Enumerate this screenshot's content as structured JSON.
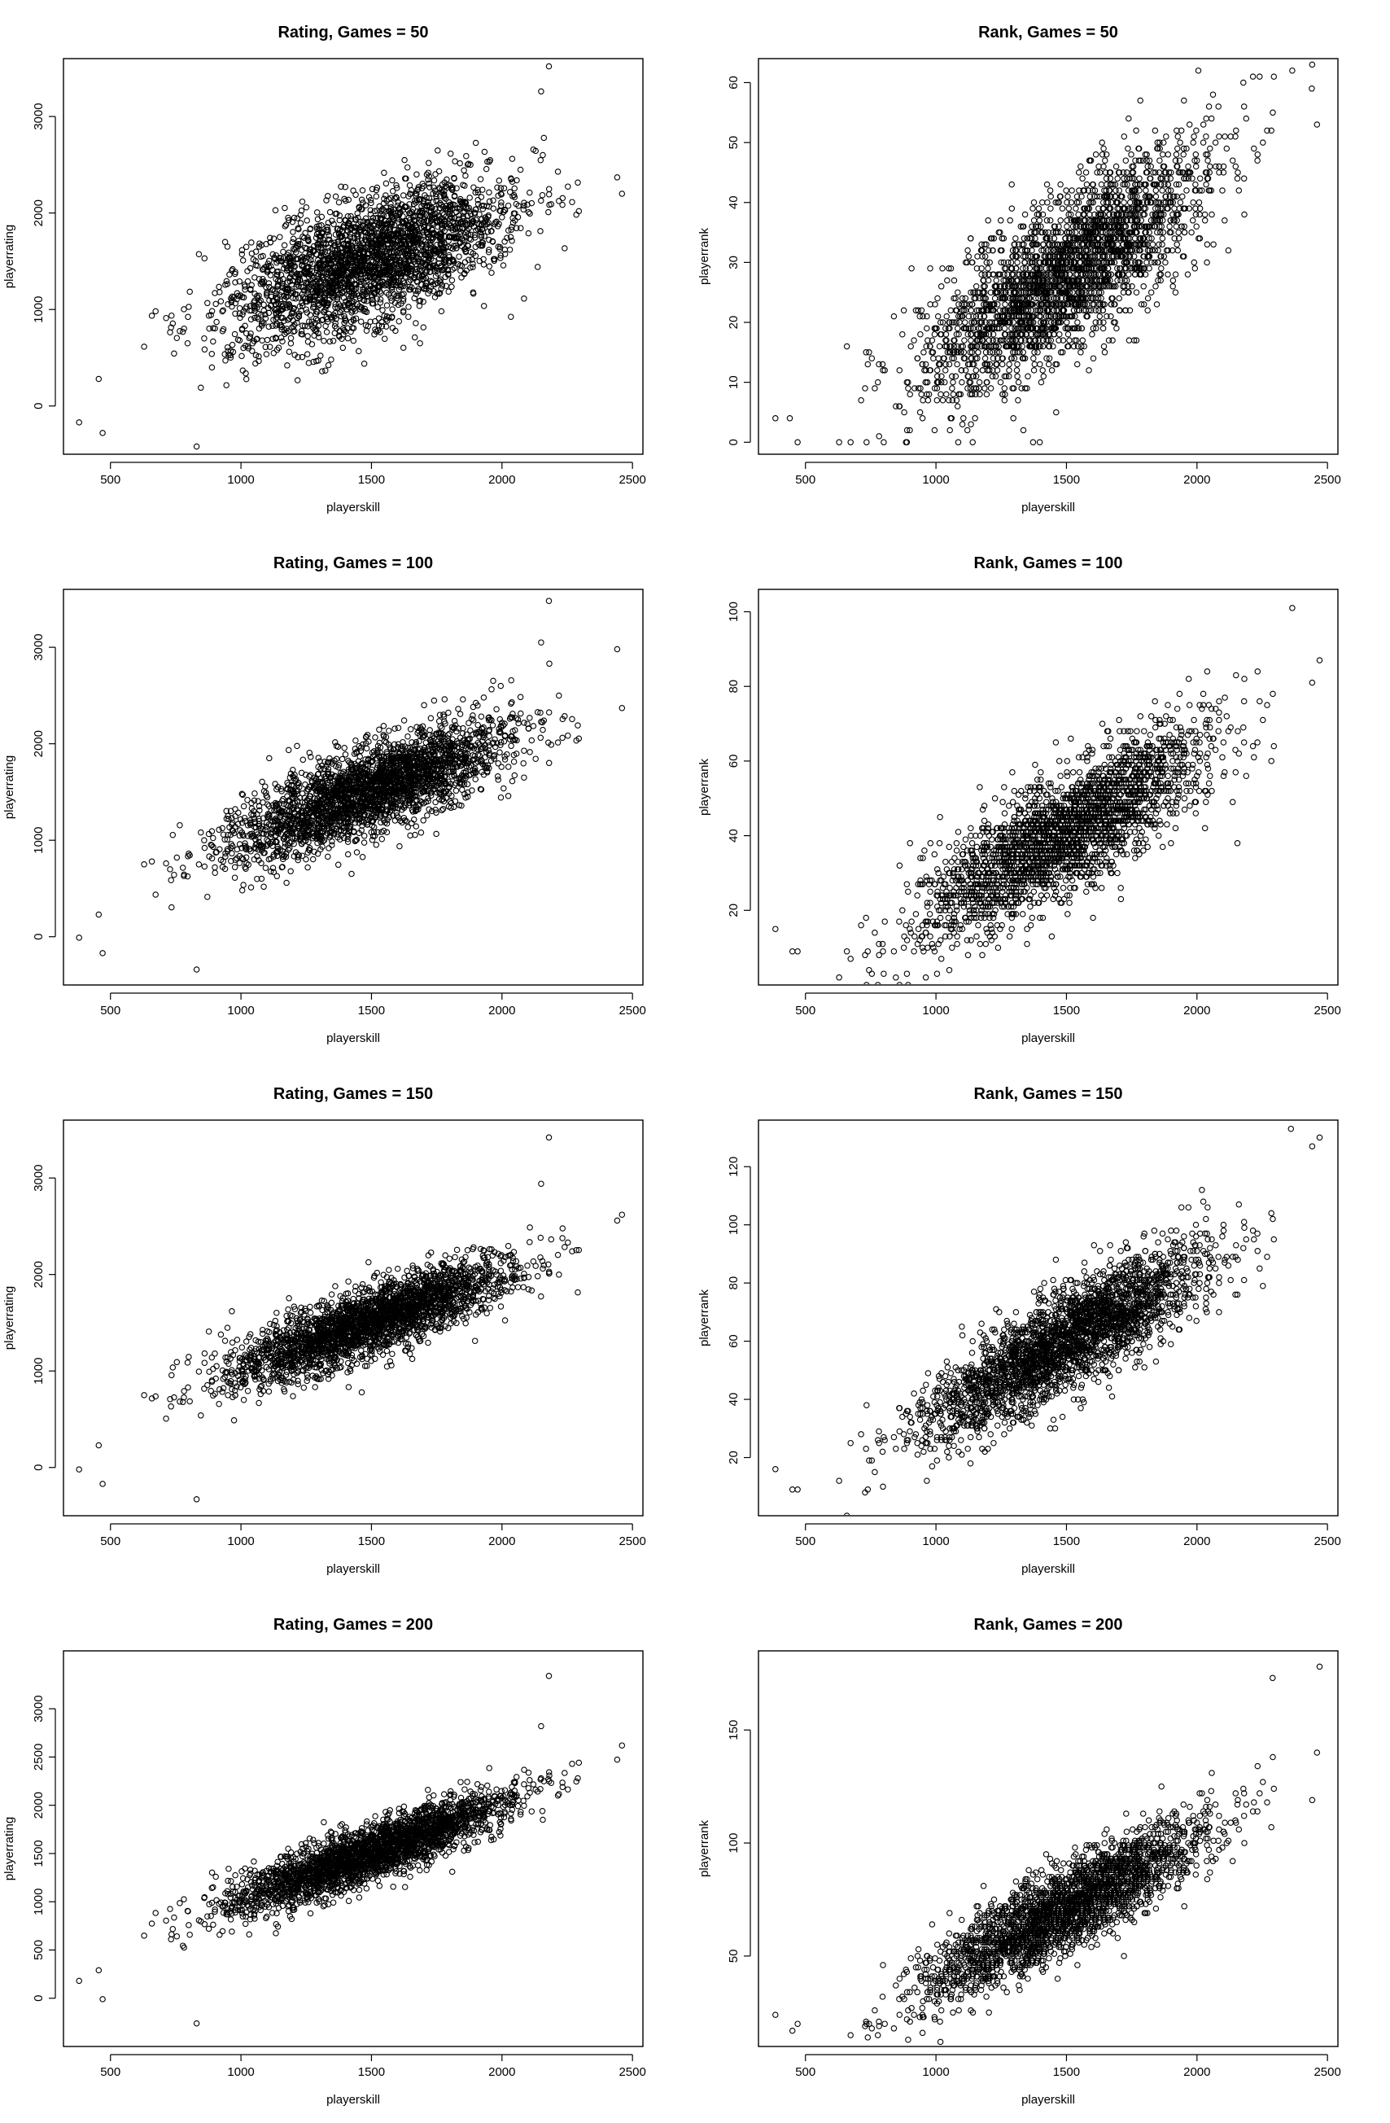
{
  "chart_data": [
    {
      "id": "rating-50",
      "type": "scatter",
      "title": "Rating, Games = 50",
      "xlabel": "playerskill",
      "ylabel": "playerrating",
      "xlim": [
        320,
        2540
      ],
      "ylim": [
        -500,
        3600
      ],
      "xticks": [
        500,
        1000,
        1500,
        2000,
        2500
      ],
      "yticks": [
        0,
        1000,
        2000,
        3000
      ],
      "grid": false,
      "trend": {
        "slope": 0.95,
        "intercept": 100,
        "noise_sd": 330
      },
      "outliers": [
        {
          "x": 380,
          "y": -170
        },
        {
          "x": 455,
          "y": 280
        },
        {
          "x": 470,
          "y": -280
        },
        {
          "x": 830,
          "y": -420
        },
        {
          "x": 2180,
          "y": 3520
        },
        {
          "x": 2150,
          "y": 3260
        },
        {
          "x": 2460,
          "y": 2200
        }
      ]
    },
    {
      "id": "rank-50",
      "type": "scatter",
      "title": "Rank, Games = 50",
      "xlabel": "playerskill",
      "ylabel": "playerrank",
      "xlim": [
        320,
        2540
      ],
      "ylim": [
        -2,
        64
      ],
      "xticks": [
        500,
        1000,
        1500,
        2000,
        2500
      ],
      "yticks": [
        0,
        10,
        20,
        30,
        40,
        50,
        60
      ],
      "grid": false,
      "trend": {
        "slope": 0.0285,
        "intercept": -14.5,
        "noise_sd": 6.5,
        "integer_y": true
      },
      "outliers": [
        {
          "x": 385,
          "y": 4
        },
        {
          "x": 440,
          "y": 4
        },
        {
          "x": 470,
          "y": 0
        },
        {
          "x": 2365,
          "y": 62
        },
        {
          "x": 2440,
          "y": 59
        },
        {
          "x": 2460,
          "y": 53
        }
      ]
    },
    {
      "id": "rating-100",
      "type": "scatter",
      "title": "Rating, Games = 100",
      "xlabel": "playerskill",
      "ylabel": "playerrating",
      "xlim": [
        320,
        2540
      ],
      "ylim": [
        -500,
        3600
      ],
      "xticks": [
        500,
        1000,
        1500,
        2000,
        2500
      ],
      "yticks": [
        0,
        1000,
        2000,
        3000
      ],
      "grid": false,
      "trend": {
        "slope": 0.97,
        "intercept": 70,
        "noise_sd": 230
      },
      "outliers": [
        {
          "x": 380,
          "y": -10
        },
        {
          "x": 455,
          "y": 230
        },
        {
          "x": 470,
          "y": -170
        },
        {
          "x": 830,
          "y": -340
        },
        {
          "x": 2180,
          "y": 3480
        },
        {
          "x": 2150,
          "y": 3050
        },
        {
          "x": 2460,
          "y": 2370
        }
      ]
    },
    {
      "id": "rank-100",
      "type": "scatter",
      "title": "Rank, Games = 100",
      "xlabel": "playerskill",
      "ylabel": "playerrank",
      "xlim": [
        320,
        2540
      ],
      "ylim": [
        0,
        106
      ],
      "xticks": [
        500,
        1000,
        1500,
        2000,
        2500
      ],
      "yticks": [
        20,
        40,
        60,
        80,
        100
      ],
      "grid": false,
      "trend": {
        "slope": 0.0408,
        "intercept": -20,
        "noise_sd": 8,
        "integer_y": true
      },
      "outliers": [
        {
          "x": 385,
          "y": 15
        },
        {
          "x": 450,
          "y": 9
        },
        {
          "x": 470,
          "y": 9
        },
        {
          "x": 2365,
          "y": 101
        },
        {
          "x": 2470,
          "y": 87
        }
      ]
    },
    {
      "id": "rating-150",
      "type": "scatter",
      "title": "Rating, Games = 150",
      "xlabel": "playerskill",
      "ylabel": "playerrating",
      "xlim": [
        320,
        2540
      ],
      "ylim": [
        -500,
        3600
      ],
      "xticks": [
        500,
        1000,
        1500,
        2000,
        2500
      ],
      "yticks": [
        0,
        1000,
        2000,
        3000
      ],
      "grid": false,
      "trend": {
        "slope": 0.98,
        "intercept": 50,
        "noise_sd": 175
      },
      "outliers": [
        {
          "x": 380,
          "y": -20
        },
        {
          "x": 455,
          "y": 230
        },
        {
          "x": 470,
          "y": -170
        },
        {
          "x": 830,
          "y": -330
        },
        {
          "x": 2180,
          "y": 3420
        },
        {
          "x": 2150,
          "y": 2940
        },
        {
          "x": 2460,
          "y": 2620
        }
      ]
    },
    {
      "id": "rank-150",
      "type": "scatter",
      "title": "Rank, Games = 150",
      "xlabel": "playerskill",
      "ylabel": "playerrank",
      "xlim": [
        320,
        2540
      ],
      "ylim": [
        0,
        136
      ],
      "xticks": [
        500,
        1000,
        1500,
        2000,
        2500
      ],
      "yticks": [
        20,
        40,
        60,
        80,
        100,
        120
      ],
      "grid": false,
      "trend": {
        "slope": 0.0505,
        "intercept": -15.5,
        "noise_sd": 8.5,
        "integer_y": true
      },
      "outliers": [
        {
          "x": 385,
          "y": 16
        },
        {
          "x": 450,
          "y": 9
        },
        {
          "x": 470,
          "y": 9
        },
        {
          "x": 2360,
          "y": 133
        },
        {
          "x": 2470,
          "y": 130
        }
      ]
    },
    {
      "id": "rating-200",
      "type": "scatter",
      "title": "Rating, Games = 200",
      "xlabel": "playerskill",
      "ylabel": "playerrating",
      "xlim": [
        320,
        2540
      ],
      "ylim": [
        -500,
        3600
      ],
      "xticks": [
        500,
        1000,
        1500,
        2000,
        2500
      ],
      "yticks": [
        0,
        500,
        1000,
        1500,
        2000,
        2500,
        3000
      ],
      "grid": false,
      "trend": {
        "slope": 0.99,
        "intercept": 30,
        "noise_sd": 145
      },
      "outliers": [
        {
          "x": 380,
          "y": 180
        },
        {
          "x": 455,
          "y": 290
        },
        {
          "x": 470,
          "y": -10
        },
        {
          "x": 830,
          "y": -260
        },
        {
          "x": 2180,
          "y": 3340
        },
        {
          "x": 2150,
          "y": 2820
        },
        {
          "x": 2460,
          "y": 2620
        }
      ]
    },
    {
      "id": "rank-200",
      "type": "scatter",
      "title": "Rank, Games = 200",
      "xlabel": "playerskill",
      "ylabel": "playerrank",
      "xlim": [
        320,
        2540
      ],
      "ylim": [
        10,
        185
      ],
      "xticks": [
        500,
        1000,
        1500,
        2000,
        2500
      ],
      "yticks": [
        50,
        100,
        150
      ],
      "grid": false,
      "trend": {
        "slope": 0.0615,
        "intercept": -21,
        "noise_sd": 9.5,
        "integer_y": true
      },
      "outliers": [
        {
          "x": 385,
          "y": 24
        },
        {
          "x": 450,
          "y": 17
        },
        {
          "x": 470,
          "y": 20
        },
        {
          "x": 2290,
          "y": 173
        },
        {
          "x": 2470,
          "y": 178
        },
        {
          "x": 2460,
          "y": 140
        }
      ]
    }
  ]
}
